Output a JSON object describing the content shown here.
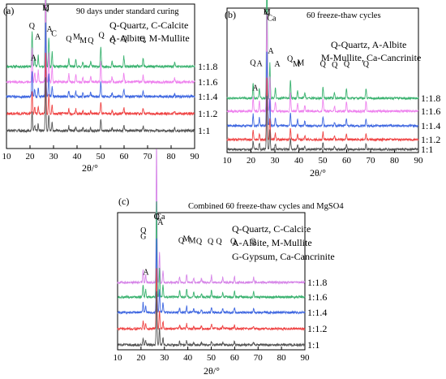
{
  "chart_data": [
    {
      "type": "line",
      "panel": "(a)",
      "title": "90 days under standard curing",
      "legend": [
        "Q-Quartz, C-Calcite",
        "A-Albite, M-Mullite"
      ],
      "xlabel": "2θ/°",
      "ylabel": "",
      "xlim": [
        10,
        90
      ],
      "xticks": [
        10,
        20,
        30,
        40,
        50,
        60,
        70,
        80,
        90
      ],
      "series": [
        {
          "name": "1:1.8",
          "color": "#3cb371"
        },
        {
          "name": "1:1.6",
          "color": "#ee82ee"
        },
        {
          "name": "1:1.4",
          "color": "#4169e1"
        },
        {
          "name": "1:1.2",
          "color": "#ef4444"
        },
        {
          "name": "1:1",
          "color": "#555555"
        }
      ],
      "peaks": [
        {
          "x": 20.9,
          "h": 0.35
        },
        {
          "x": 22.0,
          "h": 0.1
        },
        {
          "x": 23.5,
          "h": 0.12
        },
        {
          "x": 26.65,
          "h": 1.0
        },
        {
          "x": 28.0,
          "h": 0.3
        },
        {
          "x": 29.4,
          "h": 0.15
        },
        {
          "x": 36.5,
          "h": 0.08
        },
        {
          "x": 39.5,
          "h": 0.07
        },
        {
          "x": 42.5,
          "h": 0.05
        },
        {
          "x": 45.8,
          "h": 0.05
        },
        {
          "x": 50.1,
          "h": 0.2
        },
        {
          "x": 54.9,
          "h": 0.05
        },
        {
          "x": 59.9,
          "h": 0.1
        },
        {
          "x": 68.1,
          "h": 0.08
        },
        {
          "x": 81.5,
          "h": 0.04
        }
      ],
      "annotations": [
        {
          "text": "M",
          "x": 26.8,
          "y": 1.06
        },
        {
          "text": "Q",
          "x": 26.8,
          "y": 0.97
        },
        {
          "text": "Q",
          "x": 20.8,
          "y": 0.5
        },
        {
          "text": "A",
          "x": 28.3,
          "y": 0.46
        },
        {
          "text": "A",
          "x": 23.3,
          "y": 0.36
        },
        {
          "text": "C",
          "x": 30.2,
          "y": 0.4
        },
        {
          "text": "Q",
          "x": 36.5,
          "y": 0.33
        },
        {
          "text": "M",
          "x": 39.8,
          "y": 0.36
        },
        {
          "text": "M",
          "x": 42.6,
          "y": 0.31
        },
        {
          "text": "Q",
          "x": 45.8,
          "y": 0.31
        },
        {
          "text": "Q",
          "x": 50.4,
          "y": 0.38
        },
        {
          "text": "Q",
          "x": 55.1,
          "y": 0.31
        },
        {
          "text": "Q",
          "x": 60.1,
          "y": 0.33
        },
        {
          "text": "Q",
          "x": 67.8,
          "y": 0.33
        },
        {
          "text": "A",
          "x": 21.5,
          "y": 0.08
        }
      ]
    },
    {
      "type": "line",
      "panel": "(b)",
      "title": "60 freeze-thaw cycles",
      "legend": [
        "Q-Quartz, A-Albite",
        "M-Mullite, Ca-Cancrinite"
      ],
      "xlabel": "2θ/°",
      "ylabel": "",
      "xlim": [
        10,
        90
      ],
      "xticks": [
        10,
        20,
        30,
        40,
        50,
        60,
        70,
        80,
        90
      ],
      "series": [
        {
          "name": "1:1.8",
          "color": "#3cb371"
        },
        {
          "name": "1:1.6",
          "color": "#ee82ee"
        },
        {
          "name": "1:1.4",
          "color": "#4169e1"
        },
        {
          "name": "1:1.2",
          "color": "#ef4444"
        },
        {
          "name": "1:1",
          "color": "#555555"
        }
      ],
      "peaks": [
        {
          "x": 20.9,
          "h": 0.15
        },
        {
          "x": 23.5,
          "h": 0.1
        },
        {
          "x": 26.65,
          "h": 1.0
        },
        {
          "x": 27.9,
          "h": 0.35
        },
        {
          "x": 30.2,
          "h": 0.1
        },
        {
          "x": 36.5,
          "h": 0.18
        },
        {
          "x": 39.5,
          "h": 0.08
        },
        {
          "x": 42.5,
          "h": 0.06
        },
        {
          "x": 50.1,
          "h": 0.12
        },
        {
          "x": 54.9,
          "h": 0.05
        },
        {
          "x": 59.9,
          "h": 0.1
        },
        {
          "x": 68.1,
          "h": 0.1
        }
      ],
      "annotations": [
        {
          "text": "Q",
          "x": 26.7,
          "y": 1.17
        },
        {
          "text": "M",
          "x": 26.7,
          "y": 1.09
        },
        {
          "text": "Ca",
          "x": 28.6,
          "y": 1.01
        },
        {
          "text": "A",
          "x": 28.3,
          "y": 0.58
        },
        {
          "text": "A",
          "x": 31.0,
          "y": 0.41
        },
        {
          "text": "Q",
          "x": 20.8,
          "y": 0.43
        },
        {
          "text": "A",
          "x": 23.6,
          "y": 0.42
        },
        {
          "text": "Q",
          "x": 36.3,
          "y": 0.48
        },
        {
          "text": "M",
          "x": 39.0,
          "y": 0.41
        },
        {
          "text": "M",
          "x": 40.8,
          "y": 0.43
        },
        {
          "text": "Q",
          "x": 50.1,
          "y": 0.41
        },
        {
          "text": "Q",
          "x": 55.0,
          "y": 0.4
        },
        {
          "text": "Q",
          "x": 60.0,
          "y": 0.41
        },
        {
          "text": "Q",
          "x": 68.1,
          "y": 0.41
        },
        {
          "text": "A",
          "x": 21.8,
          "y": 0.1
        }
      ]
    },
    {
      "type": "line",
      "panel": "(c)",
      "title": "Combined 60 freeze-thaw cycles and MgSO4",
      "legend": [
        "Q-Quartz, C-Calcite",
        "A-Albite, M-Mullite",
        "G-Gypsum, Ca-Cancrinite"
      ],
      "xlabel": "2θ/°",
      "ylabel": "",
      "xlim": [
        10,
        90
      ],
      "xticks": [
        10,
        20,
        30,
        40,
        50,
        60,
        70,
        80,
        90
      ],
      "series": [
        {
          "name": "1:1.8",
          "color": "#d685e8"
        },
        {
          "name": "1:1.6",
          "color": "#3cb371"
        },
        {
          "name": "1:1.4",
          "color": "#4169e1"
        },
        {
          "name": "1:1.2",
          "color": "#ef4444"
        },
        {
          "name": "1:1",
          "color": "#555555"
        }
      ],
      "peaks": [
        {
          "x": 20.9,
          "h": 0.13
        },
        {
          "x": 22.0,
          "h": 0.08
        },
        {
          "x": 26.65,
          "h": 1.0
        },
        {
          "x": 27.9,
          "h": 0.3
        },
        {
          "x": 29.4,
          "h": 0.12
        },
        {
          "x": 36.5,
          "h": 0.06
        },
        {
          "x": 39.5,
          "h": 0.08
        },
        {
          "x": 42.5,
          "h": 0.05
        },
        {
          "x": 45.8,
          "h": 0.04
        },
        {
          "x": 50.1,
          "h": 0.07
        },
        {
          "x": 54.9,
          "h": 0.05
        },
        {
          "x": 59.9,
          "h": 0.06
        },
        {
          "x": 68.1,
          "h": 0.05
        }
      ],
      "annotations": [
        {
          "text": "C",
          "x": 26.7,
          "y": 1.13
        },
        {
          "text": "Q",
          "x": 26.7,
          "y": 1.06
        },
        {
          "text": "Ca",
          "x": 28.3,
          "y": 0.84
        },
        {
          "text": "A",
          "x": 28.3,
          "y": 0.76
        },
        {
          "text": "Q",
          "x": 21.0,
          "y": 0.65
        },
        {
          "text": "G",
          "x": 21.0,
          "y": 0.57
        },
        {
          "text": "Q",
          "x": 37.2,
          "y": 0.52
        },
        {
          "text": "M",
          "x": 39.4,
          "y": 0.54
        },
        {
          "text": "M",
          "x": 41.9,
          "y": 0.52
        },
        {
          "text": "Q",
          "x": 44.8,
          "y": 0.51
        },
        {
          "text": "Q",
          "x": 49.7,
          "y": 0.51
        },
        {
          "text": "Q",
          "x": 53.3,
          "y": 0.51
        },
        {
          "text": "Q",
          "x": 59.4,
          "y": 0.51
        },
        {
          "text": "Q",
          "x": 67.8,
          "y": 0.51
        },
        {
          "text": "A",
          "x": 22.1,
          "y": 0.1
        }
      ]
    }
  ]
}
